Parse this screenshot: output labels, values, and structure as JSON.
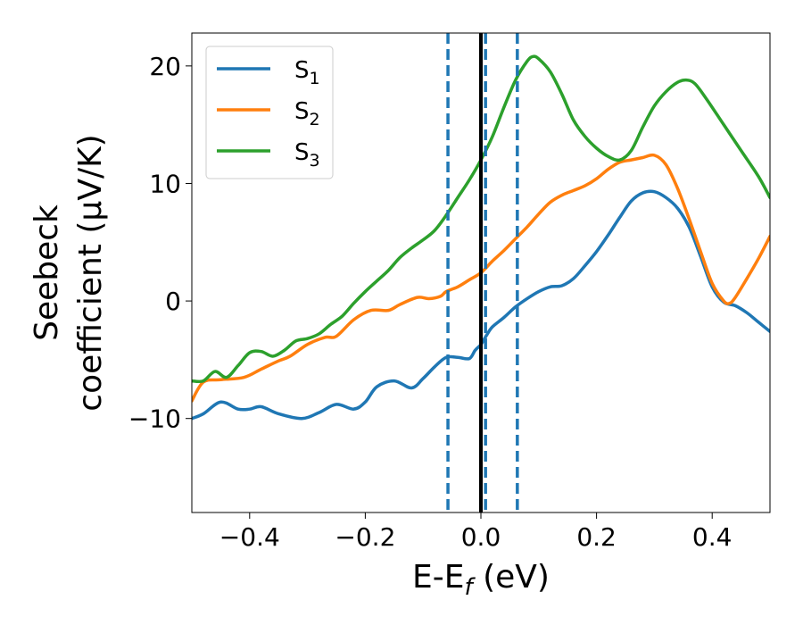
{
  "chart_data": {
    "type": "line",
    "xlabel": "E-E",
    "xlabel_sub": "f",
    "xlabel_unit": " (eV)",
    "ylabel_line1": "Seebeck",
    "ylabel_line2": "coefficient  (μV/K)",
    "xlim": [
      -0.5,
      0.5
    ],
    "ylim": [
      -18,
      22.8
    ],
    "xticks": [
      -0.4,
      -0.2,
      0.0,
      0.2,
      0.4
    ],
    "xtick_labels": [
      "−0.4",
      "−0.2",
      "0.0",
      "0.2",
      "0.4"
    ],
    "yticks": [
      -10,
      0,
      10,
      20
    ],
    "ytick_labels": [
      "−10",
      "0",
      "10",
      "20"
    ],
    "grid": false,
    "legend_position": "top-left",
    "vlines": [
      {
        "x": -0.057,
        "style": "dashed",
        "color": "#1f77b4"
      },
      {
        "x": 0.008,
        "style": "dashed",
        "color": "#1f77b4"
      },
      {
        "x": 0.063,
        "style": "dashed",
        "color": "#1f77b4"
      },
      {
        "x": 0.0,
        "style": "solid",
        "color": "#000000"
      }
    ],
    "series": [
      {
        "name": "S",
        "name_sub": "1",
        "color": "#1f77b4",
        "points": [
          [
            -0.5,
            -10
          ],
          [
            -0.48,
            -9.6
          ],
          [
            -0.45,
            -8.6
          ],
          [
            -0.42,
            -9.2
          ],
          [
            -0.4,
            -9.2
          ],
          [
            -0.38,
            -9
          ],
          [
            -0.35,
            -9.6
          ],
          [
            -0.31,
            -10
          ],
          [
            -0.28,
            -9.5
          ],
          [
            -0.25,
            -8.8
          ],
          [
            -0.22,
            -9.2
          ],
          [
            -0.2,
            -8.6
          ],
          [
            -0.18,
            -7.3
          ],
          [
            -0.15,
            -6.8
          ],
          [
            -0.12,
            -7.4
          ],
          [
            -0.1,
            -6.6
          ],
          [
            -0.08,
            -5.6
          ],
          [
            -0.06,
            -4.8
          ],
          [
            -0.04,
            -4.8
          ],
          [
            -0.02,
            -4.9
          ],
          [
            -0.01,
            -4.2
          ],
          [
            0,
            -3.7
          ],
          [
            0.01,
            -2.9
          ],
          [
            0.02,
            -2.2
          ],
          [
            0.04,
            -1.4
          ],
          [
            0.06,
            -0.5
          ],
          [
            0.08,
            0.2
          ],
          [
            0.1,
            0.8
          ],
          [
            0.12,
            1.2
          ],
          [
            0.14,
            1.3
          ],
          [
            0.16,
            1.9
          ],
          [
            0.18,
            3
          ],
          [
            0.2,
            4.2
          ],
          [
            0.22,
            5.6
          ],
          [
            0.24,
            7.1
          ],
          [
            0.26,
            8.5
          ],
          [
            0.28,
            9.2
          ],
          [
            0.3,
            9.3
          ],
          [
            0.32,
            8.8
          ],
          [
            0.34,
            7.9
          ],
          [
            0.36,
            6.3
          ],
          [
            0.38,
            3.8
          ],
          [
            0.4,
            1.2
          ],
          [
            0.42,
            -0.1
          ],
          [
            0.44,
            -0.4
          ],
          [
            0.46,
            -1
          ],
          [
            0.48,
            -1.8
          ],
          [
            0.5,
            -2.6
          ]
        ]
      },
      {
        "name": "S",
        "name_sub": "2",
        "color": "#ff7f0e",
        "points": [
          [
            -0.5,
            -8.5
          ],
          [
            -0.48,
            -6.9
          ],
          [
            -0.45,
            -6.7
          ],
          [
            -0.41,
            -6.5
          ],
          [
            -0.38,
            -5.8
          ],
          [
            -0.35,
            -5.1
          ],
          [
            -0.33,
            -4.7
          ],
          [
            -0.3,
            -3.7
          ],
          [
            -0.27,
            -3.1
          ],
          [
            -0.25,
            -3
          ],
          [
            -0.22,
            -1.6
          ],
          [
            -0.19,
            -0.8
          ],
          [
            -0.16,
            -0.8
          ],
          [
            -0.14,
            -0.3
          ],
          [
            -0.11,
            0.3
          ],
          [
            -0.09,
            0.2
          ],
          [
            -0.07,
            0.4
          ],
          [
            -0.06,
            0.8
          ],
          [
            -0.04,
            1.2
          ],
          [
            -0.02,
            1.8
          ],
          [
            0,
            2.4
          ],
          [
            0.02,
            3.4
          ],
          [
            0.04,
            4.3
          ],
          [
            0.06,
            5.3
          ],
          [
            0.08,
            6.3
          ],
          [
            0.1,
            7.4
          ],
          [
            0.12,
            8.4
          ],
          [
            0.14,
            9
          ],
          [
            0.16,
            9.4
          ],
          [
            0.18,
            9.8
          ],
          [
            0.2,
            10.4
          ],
          [
            0.22,
            11.2
          ],
          [
            0.24,
            11.8
          ],
          [
            0.26,
            12
          ],
          [
            0.28,
            12.2
          ],
          [
            0.3,
            12.4
          ],
          [
            0.32,
            11.6
          ],
          [
            0.34,
            9.6
          ],
          [
            0.36,
            7
          ],
          [
            0.38,
            4.2
          ],
          [
            0.4,
            1.5
          ],
          [
            0.42,
            0
          ],
          [
            0.43,
            -0.2
          ],
          [
            0.44,
            0.3
          ],
          [
            0.46,
            1.9
          ],
          [
            0.48,
            3.6
          ],
          [
            0.5,
            5.5
          ]
        ]
      },
      {
        "name": "S",
        "name_sub": "3",
        "color": "#2ca02c",
        "points": [
          [
            -0.5,
            -6.8
          ],
          [
            -0.48,
            -6.8
          ],
          [
            -0.46,
            -6
          ],
          [
            -0.44,
            -6.5
          ],
          [
            -0.42,
            -5.5
          ],
          [
            -0.4,
            -4.4
          ],
          [
            -0.38,
            -4.3
          ],
          [
            -0.36,
            -4.7
          ],
          [
            -0.34,
            -4.2
          ],
          [
            -0.32,
            -3.4
          ],
          [
            -0.3,
            -3.2
          ],
          [
            -0.28,
            -2.8
          ],
          [
            -0.26,
            -2
          ],
          [
            -0.24,
            -1.3
          ],
          [
            -0.22,
            -0.2
          ],
          [
            -0.2,
            0.8
          ],
          [
            -0.18,
            1.7
          ],
          [
            -0.16,
            2.6
          ],
          [
            -0.14,
            3.7
          ],
          [
            -0.12,
            4.5
          ],
          [
            -0.1,
            5.2
          ],
          [
            -0.08,
            6
          ],
          [
            -0.06,
            7.3
          ],
          [
            -0.04,
            8.8
          ],
          [
            -0.02,
            10.3
          ],
          [
            0,
            12
          ],
          [
            0.02,
            14
          ],
          [
            0.04,
            16.5
          ],
          [
            0.06,
            18.8
          ],
          [
            0.08,
            20.4
          ],
          [
            0.09,
            20.8
          ],
          [
            0.1,
            20.6
          ],
          [
            0.12,
            19.5
          ],
          [
            0.14,
            17.6
          ],
          [
            0.16,
            15.4
          ],
          [
            0.18,
            14
          ],
          [
            0.2,
            13
          ],
          [
            0.22,
            12.3
          ],
          [
            0.24,
            12
          ],
          [
            0.26,
            12.8
          ],
          [
            0.28,
            14.8
          ],
          [
            0.3,
            16.6
          ],
          [
            0.32,
            17.8
          ],
          [
            0.34,
            18.6
          ],
          [
            0.355,
            18.8
          ],
          [
            0.37,
            18.5
          ],
          [
            0.39,
            17.2
          ],
          [
            0.42,
            15
          ],
          [
            0.45,
            12.8
          ],
          [
            0.48,
            10.6
          ],
          [
            0.5,
            8.8
          ]
        ]
      }
    ]
  }
}
